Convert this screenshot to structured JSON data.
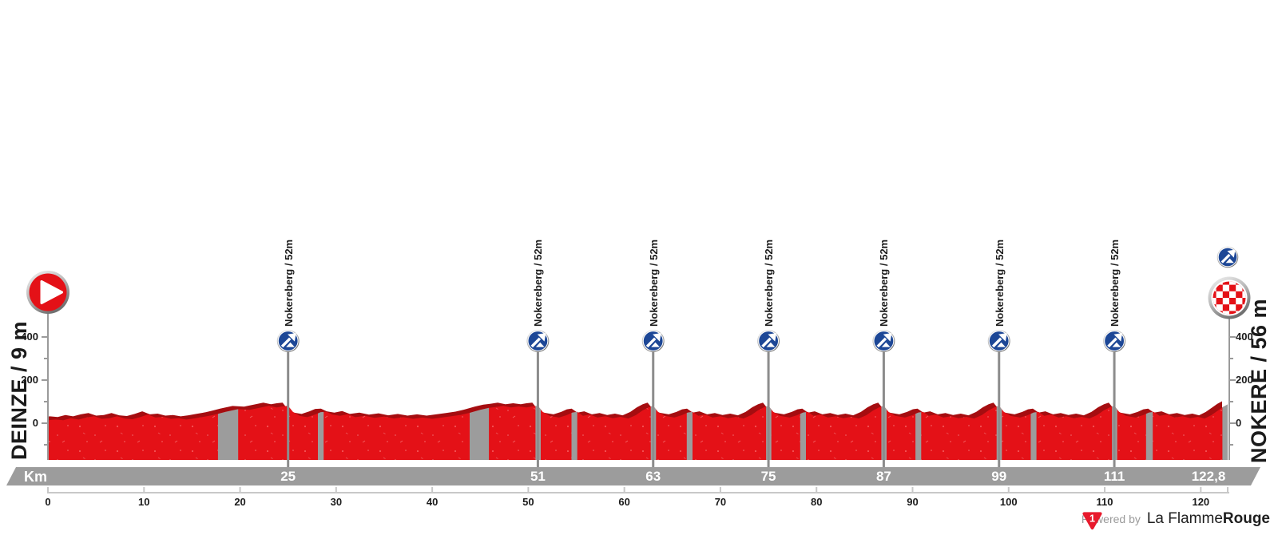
{
  "left_axis": {
    "station": "DEINZE / 9 m",
    "tick_labels": [
      "400",
      "200",
      "0"
    ]
  },
  "right_axis": {
    "station": "NOKERE / 56 m",
    "tick_labels": [
      "400",
      "200",
      "0"
    ]
  },
  "km_bar": {
    "label": "Km",
    "values": [
      {
        "km": 25,
        "text": "25"
      },
      {
        "km": 51,
        "text": "51"
      },
      {
        "km": 63,
        "text": "63"
      },
      {
        "km": 75,
        "text": "75"
      },
      {
        "km": 87,
        "text": "87"
      },
      {
        "km": 99,
        "text": "99"
      },
      {
        "km": 111,
        "text": "111"
      },
      {
        "km": 122.8,
        "text": "122,8"
      }
    ]
  },
  "ruler": {
    "labels": [
      {
        "km": 0,
        "text": "0"
      },
      {
        "km": 10,
        "text": "10"
      },
      {
        "km": 20,
        "text": "20"
      },
      {
        "km": 30,
        "text": "30"
      },
      {
        "km": 40,
        "text": "40"
      },
      {
        "km": 50,
        "text": "50"
      },
      {
        "km": 60,
        "text": "60"
      },
      {
        "km": 70,
        "text": "70"
      },
      {
        "km": 80,
        "text": "80"
      },
      {
        "km": 90,
        "text": "90"
      },
      {
        "km": 100,
        "text": "100"
      },
      {
        "km": 110,
        "text": "110"
      },
      {
        "km": 120,
        "text": "120"
      }
    ]
  },
  "footer": {
    "powered_by": "Powered by",
    "brand_regular": "La Flamme",
    "brand_bold": "Rouge",
    "logo_char": "1"
  },
  "colors": {
    "profile_red": "#e41117",
    "profile_dark_red": "#a50d10",
    "cobble_gray": "#9c9c9c",
    "bar_gray": "#9c9c9c",
    "axis_gray": "#9a9a9a",
    "pole_gray": "#8c8c8c",
    "pole_light": "#b9b9b9",
    "ruler_gray": "#c8c8c8",
    "climb_blue": "#1d4796",
    "brand_red": "#e8192c",
    "text_dark": "#1b1b1b"
  },
  "chart_data": {
    "type": "area",
    "x_unit": "km",
    "y_unit": "m",
    "x_range": [
      0,
      122.8
    ],
    "y_tick_values": [
      400,
      200,
      0
    ],
    "y_minor_tick_values": [
      300,
      100,
      -100
    ],
    "start": {
      "name": "DEINZE",
      "elevation_m": 9,
      "km": 0
    },
    "finish": {
      "name": "NOKERE",
      "elevation_m": 56,
      "km": 122.8
    },
    "climbs": [
      {
        "name": "Nokereberg",
        "km": 25,
        "elevation_m": 52,
        "label": "Nokereberg / 52m"
      },
      {
        "name": "Nokereberg",
        "km": 51,
        "elevation_m": 52,
        "label": "Nokereberg / 52m"
      },
      {
        "name": "Nokereberg",
        "km": 63,
        "elevation_m": 52,
        "label": "Nokereberg / 52m"
      },
      {
        "name": "Nokereberg",
        "km": 75,
        "elevation_m": 52,
        "label": "Nokereberg / 52m"
      },
      {
        "name": "Nokereberg",
        "km": 87,
        "elevation_m": 52,
        "label": "Nokereberg / 52m"
      },
      {
        "name": "Nokereberg",
        "km": 99,
        "elevation_m": 52,
        "label": "Nokereberg / 52m"
      },
      {
        "name": "Nokereberg",
        "km": 111,
        "elevation_m": 52,
        "label": "Nokereberg / 52m"
      }
    ],
    "finish_climb_icon_km": 122.8,
    "cobbled_sectors_km": [
      [
        17.7,
        19.8
      ],
      [
        28.1,
        28.7
      ],
      [
        43.9,
        45.9
      ],
      [
        50.75,
        51.3
      ],
      [
        54.5,
        55.1
      ],
      [
        62.75,
        63.3
      ],
      [
        66.5,
        67.1
      ],
      [
        74.75,
        75.3
      ],
      [
        78.3,
        78.9
      ],
      [
        86.75,
        87.3
      ],
      [
        90.3,
        90.9
      ],
      [
        98.75,
        99.3
      ],
      [
        102.3,
        102.9
      ],
      [
        110.75,
        111.3
      ],
      [
        114.3,
        115.0
      ],
      [
        122.25,
        122.8
      ]
    ],
    "elevation_profile": {
      "base_points": [
        [
          0,
          9
        ],
        [
          0.8,
          11
        ],
        [
          1.6,
          9
        ],
        [
          2.4,
          15
        ],
        [
          3.2,
          11
        ],
        [
          4,
          17
        ],
        [
          4.8,
          21
        ],
        [
          5.6,
          13
        ],
        [
          6.4,
          15
        ],
        [
          7.2,
          21
        ],
        [
          8,
          14
        ],
        [
          8.8,
          12
        ],
        [
          9.6,
          18
        ],
        [
          10.4,
          26
        ],
        [
          11.2,
          17
        ],
        [
          12,
          19
        ],
        [
          12.8,
          13
        ],
        [
          13.6,
          15
        ],
        [
          14.4,
          11
        ],
        [
          15.2,
          14
        ],
        [
          16,
          18
        ],
        [
          17,
          23
        ],
        [
          17.7,
          28
        ],
        [
          18.5,
          34
        ],
        [
          19.8,
          42
        ],
        [
          21,
          40
        ],
        [
          22,
          46
        ],
        [
          23,
          52
        ],
        [
          23.8,
          47
        ],
        [
          24.4,
          50
        ],
        [
          25,
          52
        ],
        [
          25.5,
          34
        ],
        [
          26.2,
          22
        ],
        [
          27,
          18
        ],
        [
          27.8,
          26
        ],
        [
          28.4,
          33
        ],
        [
          29,
          34
        ],
        [
          29.6,
          26
        ],
        [
          30.4,
          22
        ],
        [
          31.2,
          27
        ],
        [
          32,
          18
        ],
        [
          33,
          22
        ],
        [
          34,
          16
        ],
        [
          35,
          20
        ],
        [
          36,
          14
        ],
        [
          37,
          18
        ],
        [
          38,
          13
        ],
        [
          39,
          17
        ],
        [
          40,
          13
        ],
        [
          41,
          17
        ],
        [
          42,
          21
        ],
        [
          43,
          25
        ],
        [
          43.9,
          31
        ],
        [
          45,
          40
        ],
        [
          45.9,
          46
        ],
        [
          46.6,
          48
        ],
        [
          47.4,
          52
        ],
        [
          48.2,
          47
        ],
        [
          49,
          50
        ],
        [
          49.8,
          47
        ],
        [
          50.4,
          50
        ],
        [
          51,
          52
        ]
      ],
      "lap_start_kms": [
        51,
        63,
        75,
        87,
        99
      ],
      "lap_template_offsets": [
        [
          0.5,
          34
        ],
        [
          1.2,
          22
        ],
        [
          2.2,
          17
        ],
        [
          3.0,
          24
        ],
        [
          3.6,
          32
        ],
        [
          4.1,
          34
        ],
        [
          4.7,
          22
        ],
        [
          5.4,
          26
        ],
        [
          6.2,
          17
        ],
        [
          7.0,
          21
        ],
        [
          7.8,
          15
        ],
        [
          8.6,
          19
        ],
        [
          9.4,
          14
        ],
        [
          10.2,
          24
        ],
        [
          10.9,
          38
        ],
        [
          11.5,
          47
        ],
        [
          12,
          52
        ]
      ],
      "final_points": [
        [
          111.5,
          34
        ],
        [
          112.2,
          22
        ],
        [
          113.2,
          17
        ],
        [
          114,
          24
        ],
        [
          114.6,
          32
        ],
        [
          115.1,
          34
        ],
        [
          115.7,
          22
        ],
        [
          116.5,
          26
        ],
        [
          117.3,
          17
        ],
        [
          118.1,
          21
        ],
        [
          118.9,
          15
        ],
        [
          119.7,
          19
        ],
        [
          120.4,
          14
        ],
        [
          121.1,
          24
        ],
        [
          121.8,
          38
        ],
        [
          122.3,
          48
        ],
        [
          122.8,
          56
        ]
      ]
    }
  }
}
